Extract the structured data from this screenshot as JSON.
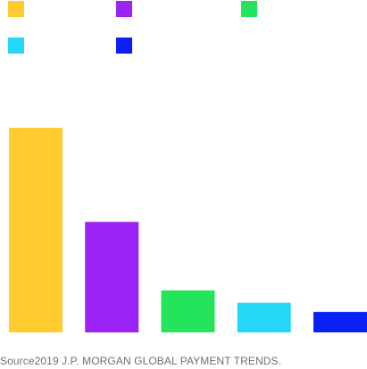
{
  "chart_data": {
    "type": "bar",
    "categories": [],
    "series": [
      {
        "value": 100,
        "color": "#FFCB2F"
      },
      {
        "value": 54,
        "color": "#9B22F5"
      },
      {
        "value": 20.5,
        "color": "#24E45B"
      },
      {
        "value": 14.5,
        "color": "#25D7F7"
      },
      {
        "value": 10,
        "color": "#0B20F4"
      }
    ],
    "ylim": [
      0,
      100
    ],
    "grid": false,
    "legend_position": "top-left",
    "legend_labels_visible": false,
    "source": "Source2019 J.P. MORGAN GLOBAL PAYMENT TRENDS."
  }
}
